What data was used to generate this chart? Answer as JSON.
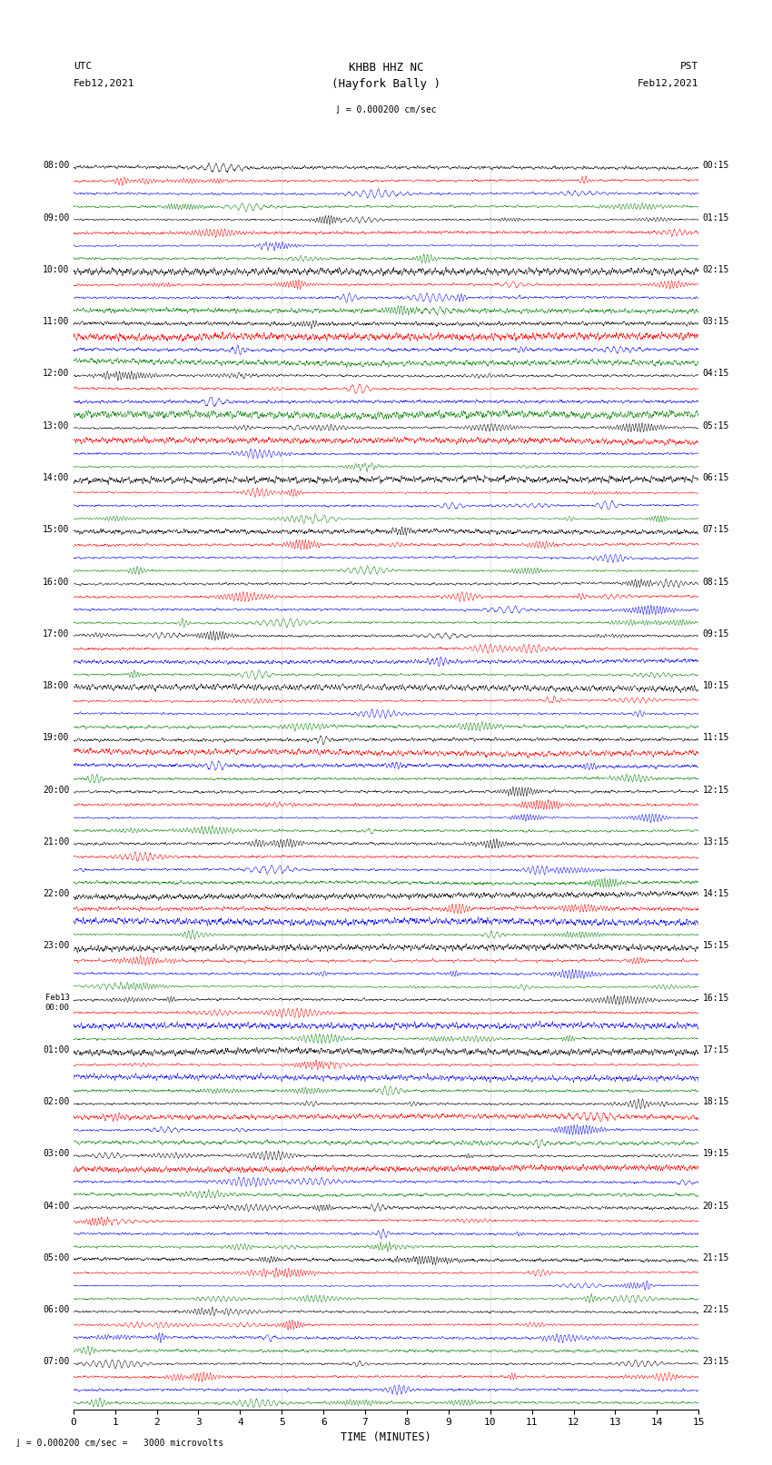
{
  "title_center": "KHBB HHZ NC\n(Hayfork Bally )",
  "title_left_top": "UTC",
  "title_left_bottom": "Feb12,2021",
  "title_right_top": "PST",
  "title_right_bottom": "Feb12,2021",
  "scale_text": "= 0.000200 cm/sec",
  "scale_text2": "= 0.000200 cm/sec =   3000 microvolts",
  "xlabel": "TIME (MINUTES)",
  "hour_labels_utc": [
    "08:00",
    "09:00",
    "10:00",
    "11:00",
    "12:00",
    "13:00",
    "14:00",
    "15:00",
    "16:00",
    "17:00",
    "18:00",
    "19:00",
    "20:00",
    "21:00",
    "22:00",
    "23:00",
    "Feb13\n00:00",
    "01:00",
    "02:00",
    "03:00",
    "04:00",
    "05:00",
    "06:00",
    "07:00"
  ],
  "hour_labels_pst": [
    "00:15",
    "01:15",
    "02:15",
    "03:15",
    "04:15",
    "05:15",
    "06:15",
    "07:15",
    "08:15",
    "09:15",
    "10:15",
    "11:15",
    "12:15",
    "13:15",
    "14:15",
    "15:15",
    "16:15",
    "17:15",
    "18:15",
    "19:15",
    "20:15",
    "21:15",
    "22:15",
    "23:15"
  ],
  "trace_colors": [
    "black",
    "red",
    "blue",
    "green"
  ],
  "n_hours": 24,
  "traces_per_hour": 4,
  "background_color": "white",
  "figsize": [
    8.5,
    16.13
  ],
  "dpi": 100,
  "xlim": [
    0,
    15
  ],
  "xticks": [
    0,
    1,
    2,
    3,
    4,
    5,
    6,
    7,
    8,
    9,
    10,
    11,
    12,
    13,
    14,
    15
  ]
}
